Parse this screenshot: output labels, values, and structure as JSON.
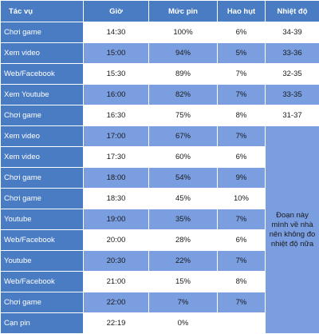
{
  "headers": [
    "Tác vụ",
    "Giờ",
    "Mức pin",
    "Hao hụt",
    "Nhiệt độ"
  ],
  "rows": [
    {
      "task": "Chơi game",
      "time": "14:30",
      "battery": "100%",
      "loss": "6%",
      "temp": "34-39"
    },
    {
      "task": "Xem video",
      "time": "15:00",
      "battery": "94%",
      "loss": "5%",
      "temp": "33-36"
    },
    {
      "task": "Web/Facebook",
      "time": "15:30",
      "battery": "89%",
      "loss": "7%",
      "temp": "32-35"
    },
    {
      "task": "Xem Youtube",
      "time": "16:00",
      "battery": "82%",
      "loss": "7%",
      "temp": "33-35"
    },
    {
      "task": "Chơi game",
      "time": "16:30",
      "battery": "75%",
      "loss": "8%",
      "temp": "31-37"
    },
    {
      "task": "Xem video",
      "time": "17:00",
      "battery": "67%",
      "loss": "7%"
    },
    {
      "task": "Xem video",
      "time": "17:30",
      "battery": "60%",
      "loss": "6%"
    },
    {
      "task": "Chơi game",
      "time": "18:00",
      "battery": "54%",
      "loss": "9%"
    },
    {
      "task": "Chơi game",
      "time": "18:30",
      "battery": "45%",
      "loss": "10%"
    },
    {
      "task": "Youtube",
      "time": "19:00",
      "battery": "35%",
      "loss": "7%"
    },
    {
      "task": "Web/Facebook",
      "time": "20:00",
      "battery": "28%",
      "loss": "6%"
    },
    {
      "task": "Youtube",
      "time": "20:30",
      "battery": "22%",
      "loss": "7%"
    },
    {
      "task": "Web/Facebook",
      "time": "21:00",
      "battery": "15%",
      "loss": "8%"
    },
    {
      "task": "Chơi game",
      "time": "22:00",
      "battery": "7%",
      "loss": "7%"
    },
    {
      "task": "Cạn pin",
      "time": "22:19",
      "battery": "0%",
      "loss": ""
    }
  ],
  "temp_note": "Đoạn này mình về nhà nên không đo nhiệt độ nữa",
  "colors": {
    "header": "#4a7cc3",
    "task_column": "#4a7cc3",
    "row_alt": "#7a9ee0",
    "row_plain": "#ffffff"
  }
}
